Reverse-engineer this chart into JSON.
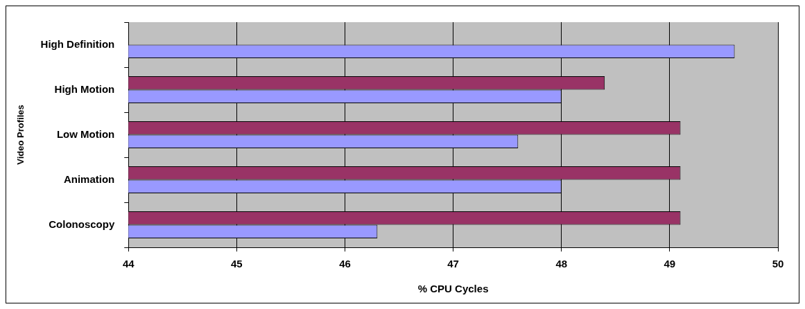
{
  "chart_data": {
    "type": "bar",
    "orientation": "horizontal",
    "xlabel": "% CPU Cycles",
    "ylabel": "Video Profiles",
    "categories": [
      "High Definition",
      "High Motion",
      "Low Motion",
      "Animation",
      "Colonoscopy"
    ],
    "series": [
      {
        "color": "#993366",
        "values": [
          null,
          48.4,
          49.1,
          49.1,
          49.1
        ]
      },
      {
        "color": "#9999ff",
        "values": [
          49.6,
          48.0,
          47.6,
          48.0,
          46.3
        ]
      }
    ],
    "xlim": [
      44,
      50
    ],
    "xticks": [
      44,
      45,
      46,
      47,
      48,
      49,
      50
    ],
    "grid": "x"
  }
}
